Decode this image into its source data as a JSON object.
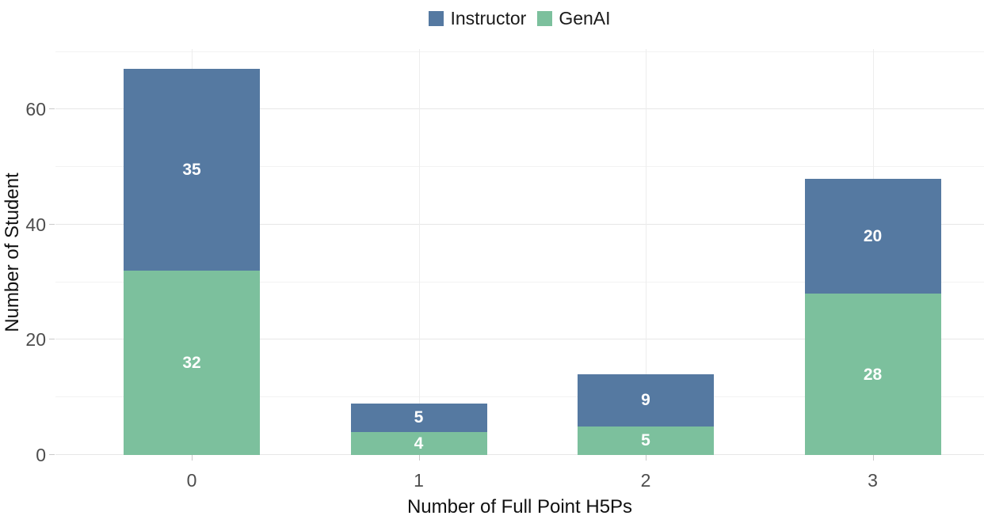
{
  "chart_data": {
    "type": "bar",
    "stacked": true,
    "title": "",
    "categories": [
      "0",
      "1",
      "2",
      "3"
    ],
    "series": [
      {
        "name": "Instructor",
        "color": "#5579A1",
        "values": [
          35,
          5,
          9,
          20
        ]
      },
      {
        "name": "GenAI",
        "color": "#7CC09D",
        "values": [
          32,
          4,
          5,
          28
        ]
      }
    ],
    "stack_order_bottom_to_top": [
      "GenAI",
      "Instructor"
    ],
    "totals": [
      67,
      9,
      14,
      48
    ],
    "xlabel": "Number of Full Point H5Ps",
    "ylabel": "Number of Student",
    "y_ticks": [
      0,
      20,
      40,
      60
    ],
    "y_minor_ticks": [
      10,
      30,
      50,
      70
    ],
    "ylim": [
      0,
      70.5
    ],
    "grid": true,
    "legend_position": "top-center",
    "bar_label_style": "white bold centered in each segment"
  },
  "colors": {
    "background": "#ffffff",
    "grid_major": "#e7e7e7",
    "grid_minor": "#f2f2f2",
    "tick_mark": "#c9c9c9",
    "tick_label": "#4d4d4d",
    "axis_title": "#111111",
    "instructor": "#5579A1",
    "genai": "#7CC09D"
  }
}
